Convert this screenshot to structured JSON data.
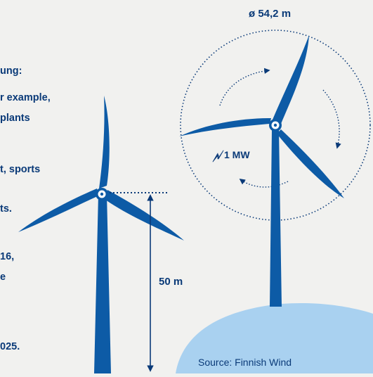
{
  "body_text": {
    "line_1": "ung:",
    "line_2": "r example,",
    "line_3": "plants",
    "line_4": "t, sports",
    "line_5": "ts.",
    "line_6": "16,",
    "line_7": "e",
    "line_8": "025."
  },
  "rotor_diameter_label": "ø 54,2 m",
  "power_label": "1 MW",
  "power_icon": "lightning-bolt-icon",
  "hub_height_label": "50 m",
  "source_label": "Source: Finnish Wind",
  "colors": {
    "background": "#f1f1ef",
    "turbine_blue": "#0d5ba6",
    "text_navy": "#0a3a78",
    "hill": "#a9d1f0"
  }
}
